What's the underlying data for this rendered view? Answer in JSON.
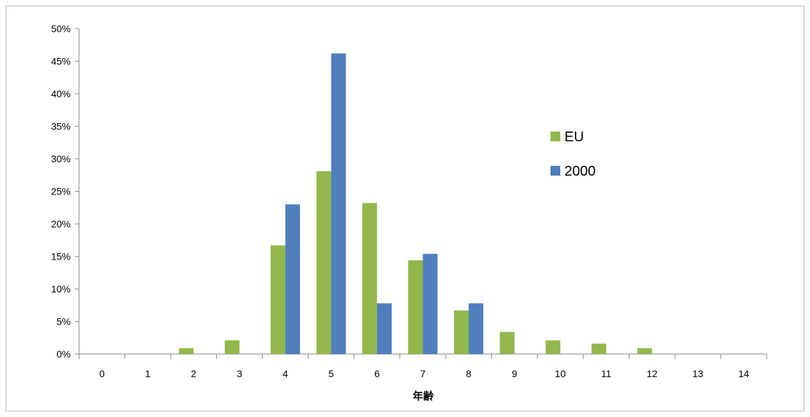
{
  "chart_data": {
    "type": "bar",
    "title": "",
    "xlabel": "年齢",
    "ylabel": "",
    "categories": [
      "0",
      "1",
      "2",
      "3",
      "4",
      "5",
      "6",
      "7",
      "8",
      "9",
      "10",
      "11",
      "12",
      "13",
      "14"
    ],
    "series": [
      {
        "name": "EU",
        "color": "#92b74b",
        "values": [
          0,
          0,
          0.9,
          2.1,
          16.7,
          28.1,
          23.2,
          14.4,
          6.7,
          3.4,
          2.1,
          1.6,
          0.9,
          0,
          0
        ]
      },
      {
        "name": "2000",
        "color": "#4f7fbd",
        "values": [
          0,
          0,
          0,
          0,
          23.0,
          46.2,
          7.8,
          15.4,
          7.8,
          0,
          0,
          0,
          0,
          0,
          0
        ]
      }
    ],
    "ylim": [
      0,
      50
    ],
    "yticks": [
      0,
      5,
      10,
      15,
      20,
      25,
      30,
      35,
      40,
      45,
      50
    ],
    "ytick_labels": [
      "0%",
      "5%",
      "10%",
      "15%",
      "20%",
      "25%",
      "30%",
      "35%",
      "40%",
      "45%",
      "50%"
    ],
    "grid": false,
    "legend": "right"
  }
}
